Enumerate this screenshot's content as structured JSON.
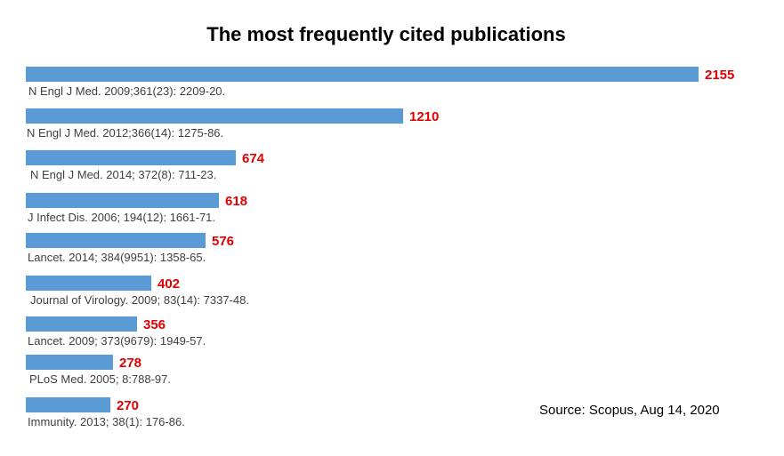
{
  "chart_data": {
    "type": "bar",
    "orientation": "horizontal",
    "title": "The most frequently cited publications",
    "categories": [
      "N Engl J Med. 2009;361(23): 2209-20.",
      "N Engl J Med. 2012;366(14): 1275-86.",
      "N Engl J Med. 2014; 372(8): 711-23.",
      "J Infect Dis. 2006; 194(12): 1661-71.",
      "Lancet. 2014; 384(9951): 1358-65.",
      "Journal of Virology. 2009; 83(14): 7337-48.",
      "Lancet. 2009; 373(9679): 1949-57.",
      "PLoS Med. 2005; 8:788-97.",
      "Immunity. 2013; 38(1): 176-86."
    ],
    "values": [
      2155,
      1210,
      674,
      618,
      576,
      402,
      356,
      278,
      270
    ],
    "source": "Source: Scopus, Aug 14, 2020",
    "xlim": [
      0,
      2155
    ],
    "grid": false,
    "legend": "none",
    "bar_color": "#5b9bd5",
    "value_label_color": "#e00000",
    "category_label_color": "#404040"
  }
}
